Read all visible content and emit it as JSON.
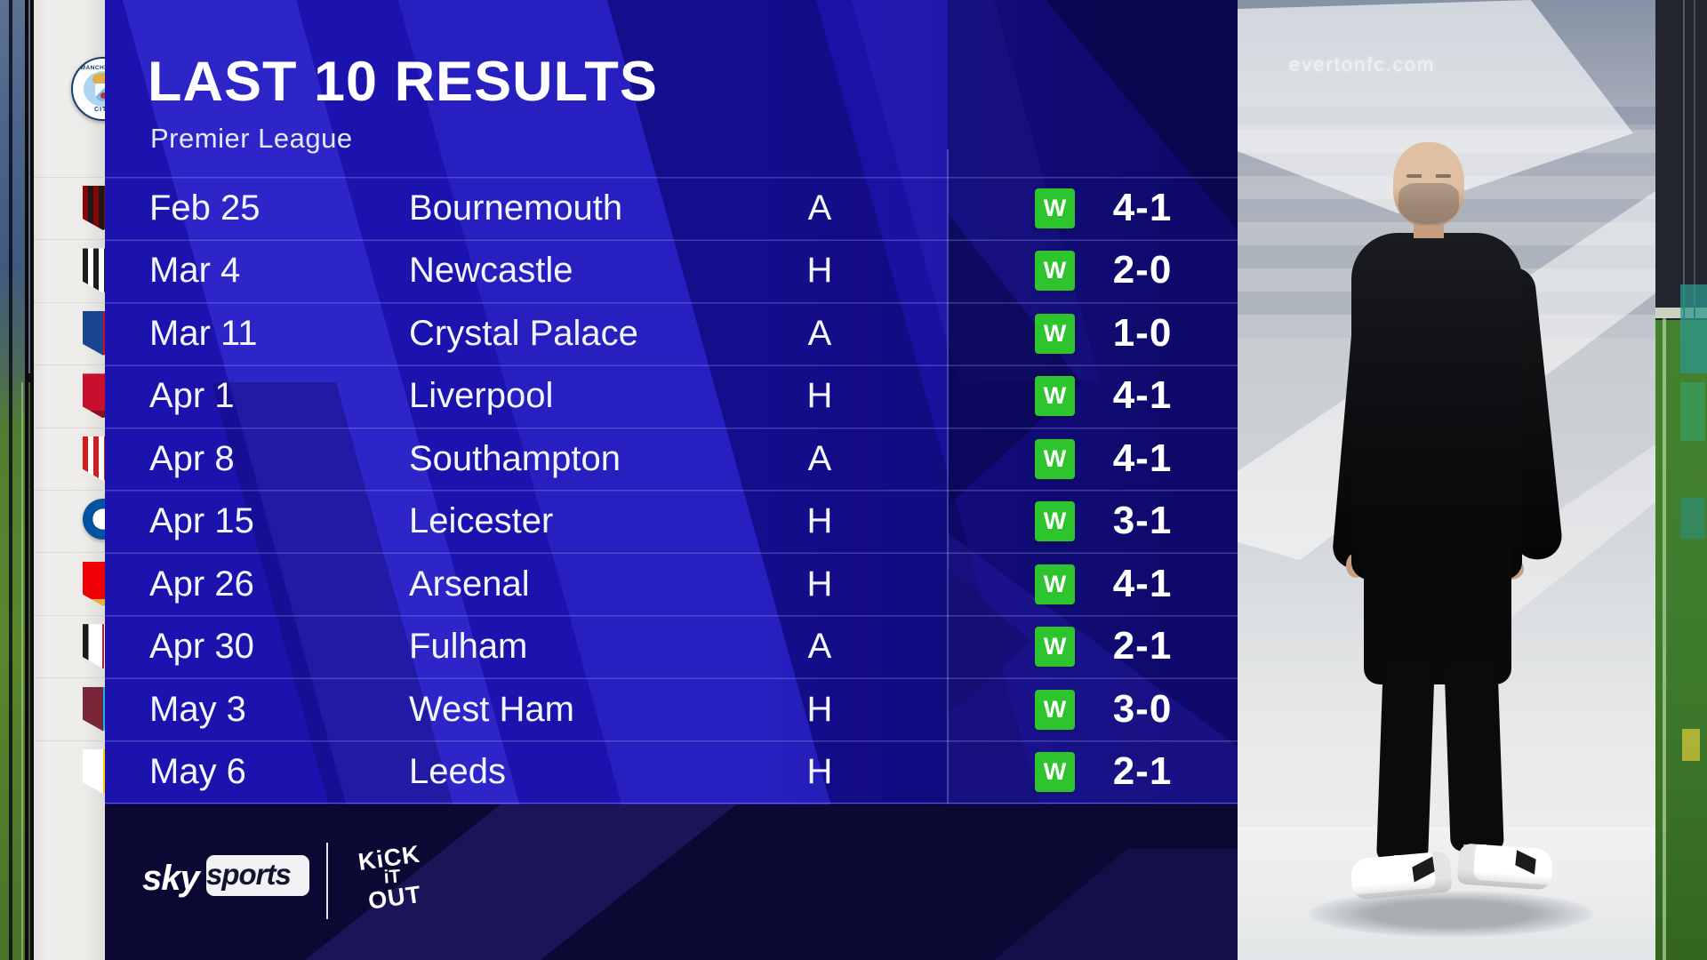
{
  "app": {
    "type": "tv-sports-graphic",
    "broadcaster": "Sky Sports"
  },
  "header": {
    "title": "LAST 10 RESULTS",
    "subtitle": "Premier League",
    "team": "Manchester City"
  },
  "team_badge": {
    "ring_text_top": "MANCHESTER",
    "ring_text_bottom": "CITY",
    "colors": [
      "#ffffff",
      "#aed6f1",
      "#dfb04a",
      "#16406d",
      "#c03038"
    ]
  },
  "table": {
    "columns": [
      "date",
      "opponent",
      "venue",
      "result",
      "score"
    ],
    "result_badge_color": "#2ec42e",
    "rows": [
      {
        "date": "Feb 25",
        "opponent": "Bournemouth",
        "venue": "A",
        "result": "W",
        "score": "4-1",
        "crest": {
          "style": "stripes",
          "colors": [
            "#8b0304",
            "#1a1a1a"
          ]
        }
      },
      {
        "date": "Mar 4",
        "opponent": "Newcastle",
        "venue": "H",
        "result": "W",
        "score": "2-0",
        "crest": {
          "style": "stripes",
          "colors": [
            "#1c1c1c",
            "#ffffff"
          ]
        }
      },
      {
        "date": "Mar 11",
        "opponent": "Crystal Palace",
        "venue": "A",
        "result": "W",
        "score": "1-0",
        "crest": {
          "style": "split",
          "colors": [
            "#1b458f",
            "#c4122e"
          ]
        }
      },
      {
        "date": "Apr 1",
        "opponent": "Liverpool",
        "venue": "H",
        "result": "W",
        "score": "4-1",
        "crest": {
          "style": "solid",
          "colors": [
            "#c8102e",
            "#8b0b20"
          ]
        }
      },
      {
        "date": "Apr 8",
        "opponent": "Southampton",
        "venue": "A",
        "result": "W",
        "score": "4-1",
        "crest": {
          "style": "stripes",
          "colors": [
            "#d71920",
            "#ffffff"
          ]
        }
      },
      {
        "date": "Apr 15",
        "opponent": "Leicester",
        "venue": "H",
        "result": "W",
        "score": "3-1",
        "crest": {
          "style": "roundel",
          "colors": [
            "#0053a0",
            "#ffffff"
          ]
        }
      },
      {
        "date": "Apr 26",
        "opponent": "Arsenal",
        "venue": "H",
        "result": "W",
        "score": "4-1",
        "crest": {
          "style": "solid",
          "colors": [
            "#ef0107",
            "#e3b53b"
          ]
        }
      },
      {
        "date": "Apr 30",
        "opponent": "Fulham",
        "venue": "A",
        "result": "W",
        "score": "2-1",
        "crest": {
          "style": "border",
          "colors": [
            "#ffffff",
            "#1a1a1a"
          ]
        }
      },
      {
        "date": "May 3",
        "opponent": "West Ham",
        "venue": "H",
        "result": "W",
        "score": "3-0",
        "crest": {
          "style": "split",
          "colors": [
            "#7a263a",
            "#1bb1e7"
          ]
        }
      },
      {
        "date": "May 6",
        "opponent": "Leeds",
        "venue": "H",
        "result": "W",
        "score": "2-1",
        "crest": {
          "style": "split",
          "colors": [
            "#ffffff",
            "#ffcd00"
          ]
        }
      }
    ]
  },
  "footer": {
    "sky_logo": {
      "part1": "sky",
      "part2": "sports"
    },
    "kick_it_out": {
      "line1": "KiCK",
      "line2": "iT",
      "line3": "OUT"
    }
  },
  "backdrop": {
    "watermark": "evertonfc.com"
  },
  "background": {
    "panel_blue": "#1c13ae",
    "stripe_light": "#3e37e2",
    "stripe_dark": "#0b0764",
    "footer_navy": "#0b0834",
    "badge_strip": "#edecE9",
    "accent_green": "#2ec42e"
  }
}
